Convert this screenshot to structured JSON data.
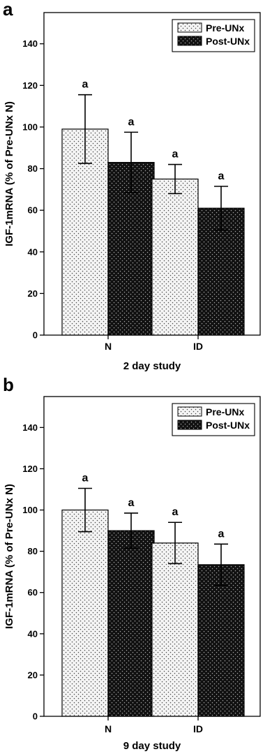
{
  "colors": {
    "pre_fill": "#f4f4f4",
    "post_fill": "#111111",
    "axis": "#000000"
  },
  "chart_data": [
    {
      "panel": "a",
      "type": "bar",
      "title": "",
      "xlabel": "2 day study",
      "ylabel": "IGF-1mRNA (% of Pre-UNx N)",
      "categories": [
        "N",
        "ID"
      ],
      "ylim": [
        0,
        155
      ],
      "yticks": [
        0,
        20,
        40,
        60,
        80,
        100,
        120,
        140
      ],
      "legend_position": "top-right",
      "series": [
        {
          "name": "Pre-UNx",
          "values": [
            99,
            75
          ],
          "errors": [
            16.5,
            7
          ],
          "labels": [
            "a",
            "a"
          ]
        },
        {
          "name": "Post-UNx",
          "values": [
            83,
            61
          ],
          "errors": [
            14.5,
            10.5
          ],
          "labels": [
            "a",
            "a"
          ]
        }
      ]
    },
    {
      "panel": "b",
      "type": "bar",
      "title": "",
      "xlabel": "9 day study",
      "ylabel": "IGF-1mRNA (% of Pre-UNx N)",
      "categories": [
        "N",
        "ID"
      ],
      "ylim": [
        0,
        155
      ],
      "yticks": [
        0,
        20,
        40,
        60,
        80,
        100,
        120,
        140
      ],
      "legend_position": "top-right",
      "series": [
        {
          "name": "Pre-UNx",
          "values": [
            100,
            84
          ],
          "errors": [
            10.5,
            10
          ],
          "labels": [
            "a",
            "a"
          ]
        },
        {
          "name": "Post-UNx",
          "values": [
            90,
            73.5
          ],
          "errors": [
            8.5,
            10
          ],
          "labels": [
            "a",
            "a"
          ]
        }
      ]
    }
  ]
}
